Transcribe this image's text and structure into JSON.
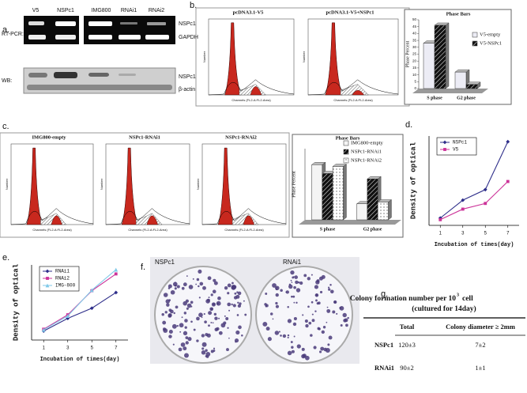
{
  "panel_labels": [
    "a.",
    "b.",
    "c.",
    "d.",
    "e.",
    "f.",
    "g."
  ],
  "gel": {
    "lanes": [
      "V5",
      "NSPc1",
      "IMG800",
      "RNAi1",
      "RNAi2"
    ],
    "methods": [
      "RT-PCR:",
      "WB:"
    ],
    "bands": [
      "NSPc1",
      "GAPDH",
      "NSPc1",
      "β-actin"
    ]
  },
  "flow": {
    "panels": [
      "pcDNA3.1-V5",
      "pcDNA3.1-V5+NSPc1",
      "IMG800-empty",
      "NSPc1-RNAi1",
      "NSPc1-RNAi2"
    ],
    "x_label": "Channels (FL2-A:FL2-Area)",
    "y_label": "Number"
  },
  "chart_data": [
    {
      "type": "bar",
      "title": "Phase Bars",
      "y_label": "Phase Percent",
      "categories": [
        "S phase",
        "G2 phase"
      ],
      "series": [
        {
          "name": "V5-empty",
          "color": "#ececf5",
          "pattern": "solid",
          "values": [
            33,
            12
          ]
        },
        {
          "name": "V5-NSPc1",
          "color": "#111111",
          "pattern": "hatch",
          "values": [
            46,
            3
          ]
        }
      ],
      "ylim": [
        0,
        50
      ],
      "yticks": [
        0,
        5,
        10,
        15,
        20,
        25,
        30,
        35,
        40,
        45,
        50
      ]
    },
    {
      "type": "bar",
      "title": "Phase Bars",
      "y_label": "Phase Percent",
      "categories": [
        "S phase",
        "G2 phase"
      ],
      "series": [
        {
          "name": "IMG800-empty",
          "color": "#f4f4f4",
          "pattern": "solid",
          "values": [
            31,
            9
          ]
        },
        {
          "name": "NSPc1-RNAi1",
          "color": "#111111",
          "pattern": "hatch",
          "values": [
            26,
            23
          ]
        },
        {
          "name": "NSPc1-RNAi2",
          "color": "#666666",
          "pattern": "dots",
          "values": [
            30,
            10
          ]
        }
      ],
      "ylim": [
        0,
        40
      ]
    },
    {
      "type": "line",
      "x_label": "Incubation of times(day)",
      "y_label": "Density of optical",
      "x": [
        1,
        3,
        5,
        7
      ],
      "series": [
        {
          "name": "NSPc1",
          "color": "#2e2e8a",
          "marker": "diamond",
          "values": [
            0.09,
            0.31,
            0.44,
            1.03
          ]
        },
        {
          "name": "V5",
          "color": "#cc3399",
          "marker": "square",
          "values": [
            0.07,
            0.2,
            0.27,
            0.54
          ]
        }
      ],
      "xlim": [
        0,
        8
      ],
      "xticks": [
        1,
        3,
        5,
        7
      ],
      "ylim": [
        0,
        1.1
      ]
    },
    {
      "type": "line",
      "x_label": "Incubation of times(day)",
      "y_label": "Density of optical",
      "x": [
        1,
        3,
        5,
        7
      ],
      "series": [
        {
          "name": "RNAi1",
          "color": "#2e2e8a",
          "marker": "diamond",
          "values": [
            0.15,
            0.36,
            0.53,
            0.79
          ]
        },
        {
          "name": "RNAi2",
          "color": "#cc3399",
          "marker": "square",
          "values": [
            0.18,
            0.42,
            0.82,
            1.1
          ]
        },
        {
          "name": "IMG-800",
          "color": "#7fc9e8",
          "marker": "triangle",
          "values": [
            0.17,
            0.4,
            0.83,
            1.17
          ]
        }
      ],
      "xlim": [
        0,
        8
      ],
      "xticks": [
        1,
        3,
        5,
        7
      ],
      "ylim": [
        0,
        1.25
      ]
    }
  ],
  "colonies": {
    "labels": [
      "NSPc1",
      "RNAi1"
    ]
  },
  "table": {
    "title": "Colony formation number per 10",
    "title_sup": "3",
    "title_tail": "cell",
    "subtitle": "(cultured for 14day)",
    "header": [
      "Total",
      "Colony diameter ≥ 2mm"
    ],
    "rows": [
      [
        "NSPc1",
        "120±3",
        "7±2"
      ],
      [
        "RNAi1",
        "90±2",
        "1±1"
      ]
    ]
  }
}
